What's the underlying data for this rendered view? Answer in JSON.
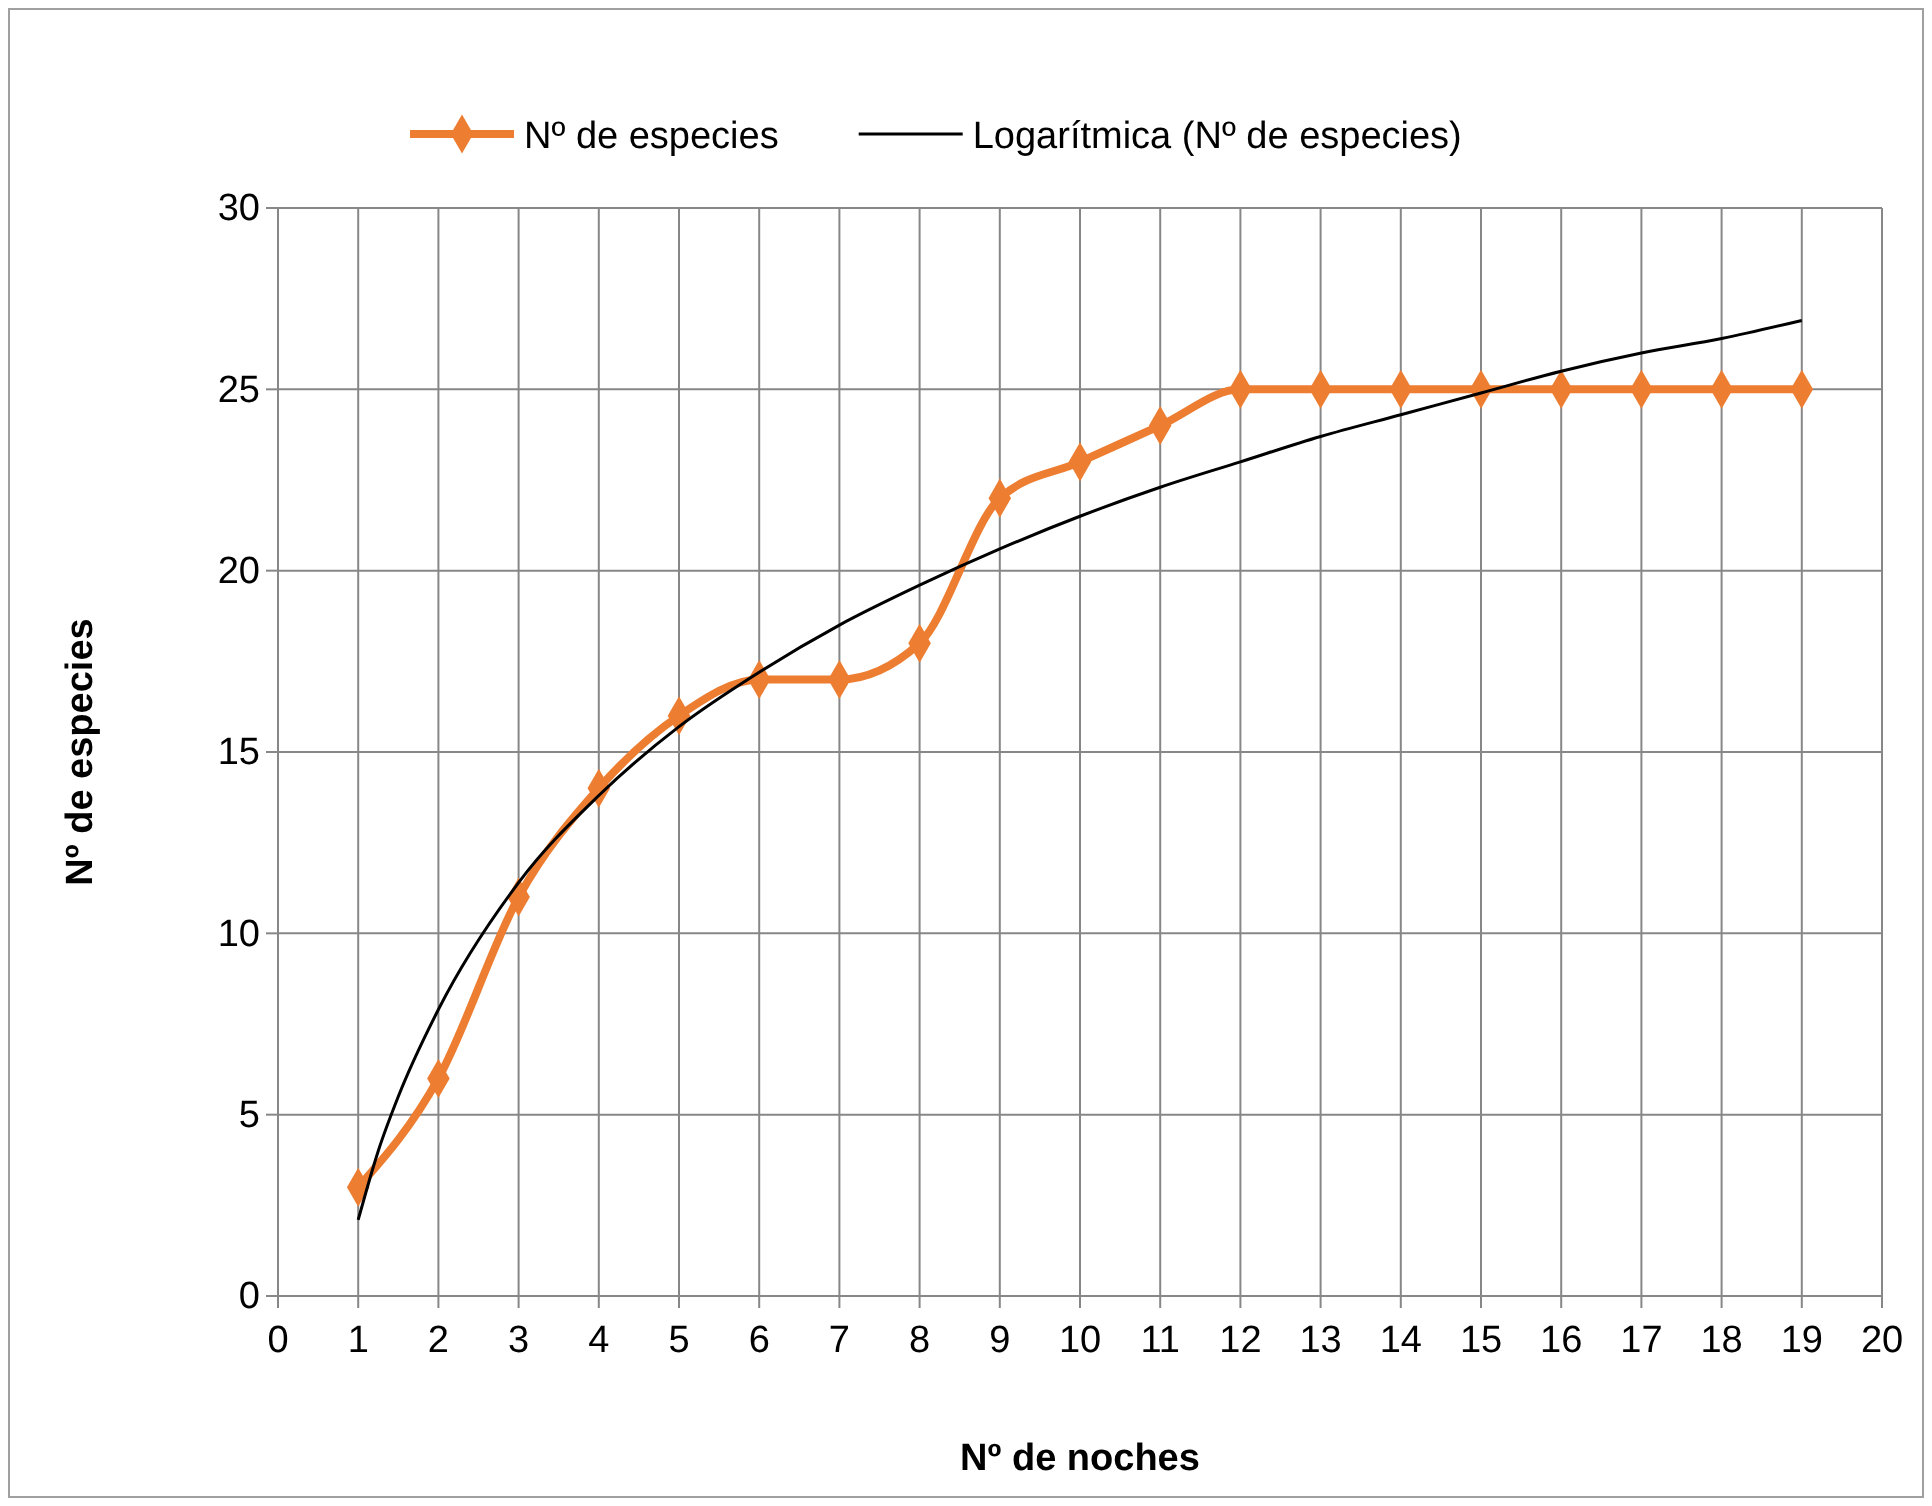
{
  "chart_data": {
    "type": "line",
    "xlabel": "Nº de noches",
    "ylabel": "Nº de especies",
    "xlim": [
      0,
      20
    ],
    "xticks": [
      0,
      1,
      2,
      3,
      4,
      5,
      6,
      7,
      8,
      9,
      10,
      11,
      12,
      13,
      14,
      15,
      16,
      17,
      18,
      19,
      20
    ],
    "ylim": [
      0,
      30
    ],
    "yticks": [
      0,
      5,
      10,
      15,
      20,
      25,
      30
    ],
    "grid": true,
    "legend": "top",
    "series": [
      {
        "name": "Nº de especies",
        "color": "#ed7d31",
        "marker": "diamond",
        "x": [
          1,
          2,
          3,
          4,
          5,
          6,
          7,
          8,
          9,
          10,
          11,
          12,
          13,
          14,
          15,
          16,
          17,
          18,
          19
        ],
        "values": [
          3,
          6,
          11,
          14,
          16,
          17,
          17,
          18,
          22,
          23,
          24,
          25,
          25,
          25,
          25,
          25,
          25,
          25,
          25
        ]
      },
      {
        "name": "Logarítmica (Nº de especies)",
        "color": "#000000",
        "marker": "none",
        "x": [
          1,
          1.25,
          1.5,
          2,
          3,
          4,
          5,
          6,
          7,
          8,
          9,
          10,
          11,
          12,
          13,
          14,
          15,
          16,
          17,
          18,
          19
        ],
        "values": [
          2.1,
          4.0,
          5.5,
          7.9,
          11.4,
          13.8,
          15.7,
          17.2,
          18.5,
          19.6,
          20.6,
          21.5,
          22.3,
          23.0,
          23.7,
          24.3,
          24.9,
          25.5,
          26.0,
          26.4,
          26.9
        ]
      }
    ]
  }
}
